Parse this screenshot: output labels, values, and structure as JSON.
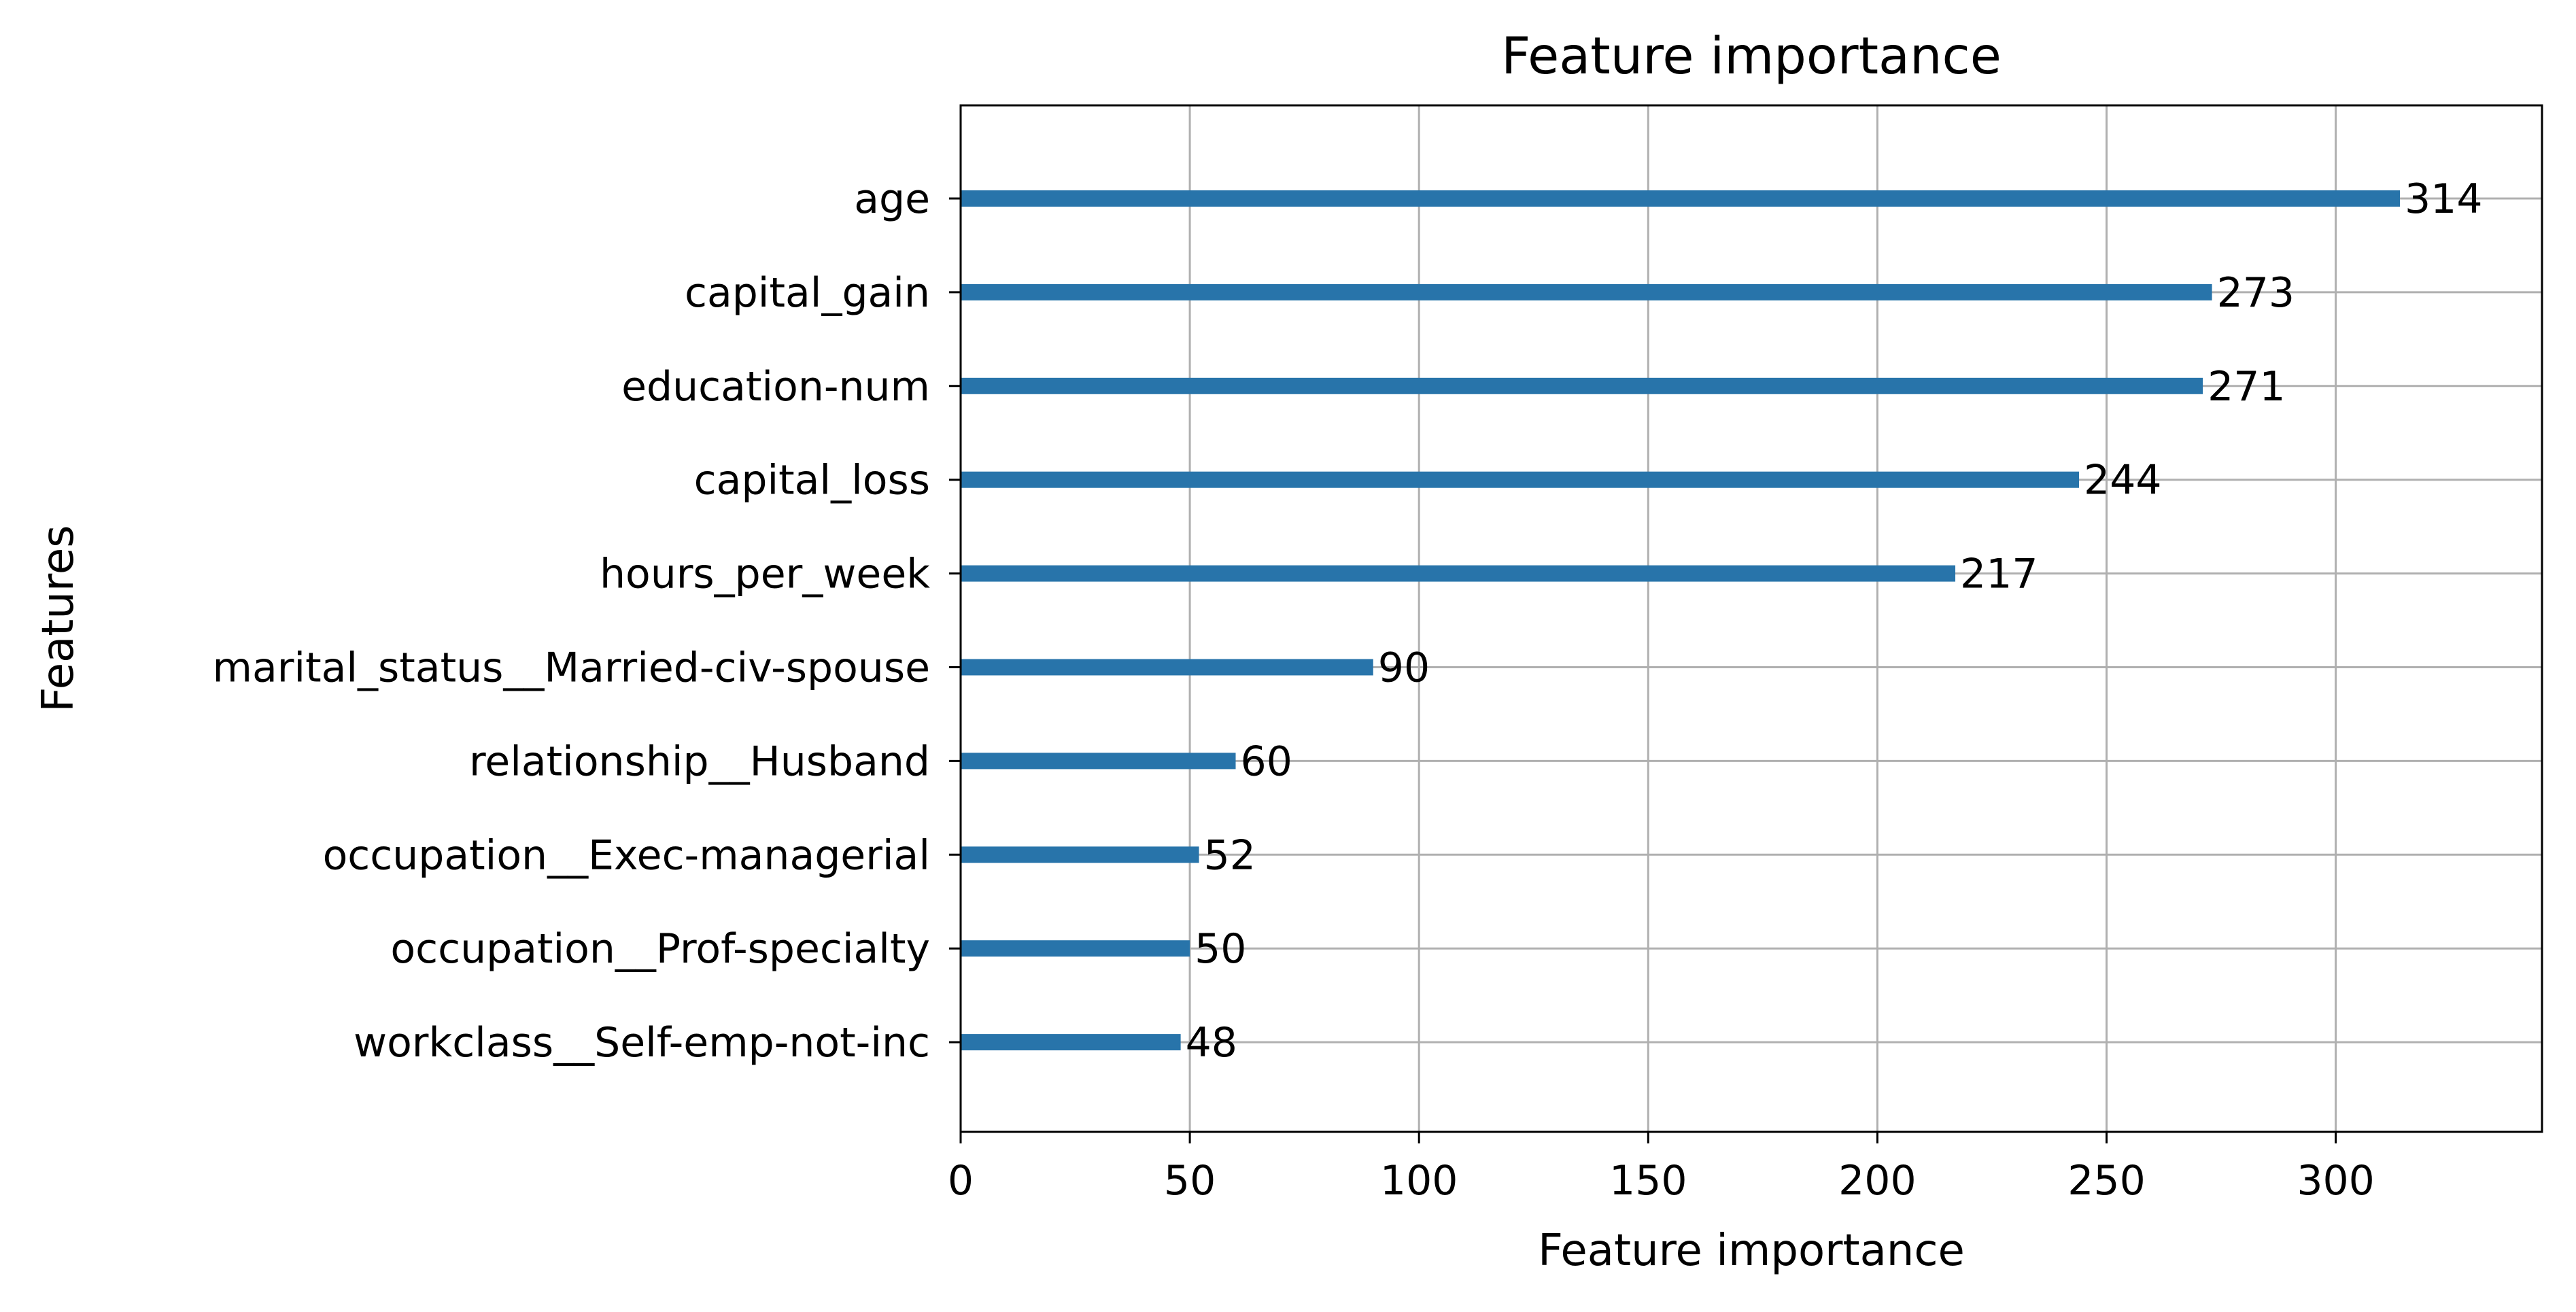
{
  "chart_data": {
    "type": "bar",
    "orientation": "horizontal",
    "title": "Feature importance",
    "xlabel": "Feature importance",
    "ylabel": "Features",
    "categories": [
      "age",
      "capital_gain",
      "education-num",
      "capital_loss",
      "hours_per_week",
      "marital_status__Married-civ-spouse",
      "relationship__Husband",
      "occupation__Exec-managerial",
      "occupation__Prof-specialty",
      "workclass__Self-emp-not-inc"
    ],
    "values": [
      314,
      273,
      271,
      244,
      217,
      90,
      60,
      52,
      50,
      48
    ],
    "data_labels": [
      "314",
      "273",
      "271",
      "244",
      "217",
      "90",
      "60",
      "52",
      "50",
      "48"
    ],
    "xlim": [
      0,
      345
    ],
    "xticks": [
      0,
      50,
      100,
      150,
      200,
      250,
      300
    ],
    "xtick_labels": [
      "0",
      "50",
      "100",
      "150",
      "200",
      "250",
      "300"
    ],
    "grid": true,
    "bar_color": "#2874aa",
    "grid_color": "#b0b0b0"
  }
}
